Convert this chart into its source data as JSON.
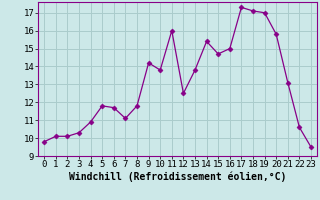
{
  "x": [
    0,
    1,
    2,
    3,
    4,
    5,
    6,
    7,
    8,
    9,
    10,
    11,
    12,
    13,
    14,
    15,
    16,
    17,
    18,
    19,
    20,
    21,
    22,
    23
  ],
  "y": [
    9.8,
    10.1,
    10.1,
    10.3,
    10.9,
    11.8,
    11.7,
    11.1,
    11.8,
    14.2,
    13.8,
    16.0,
    12.5,
    13.8,
    15.4,
    14.7,
    15.0,
    17.3,
    17.1,
    17.0,
    15.8,
    13.1,
    10.6,
    9.5
  ],
  "line_color": "#880088",
  "marker": "D",
  "marker_size": 2.5,
  "background_color": "#cce8e8",
  "grid_color": "#aacccc",
  "xlabel": "Windchill (Refroidissement éolien,°C)",
  "xlabel_fontsize": 7,
  "ylim": [
    9,
    17.6
  ],
  "xlim": [
    -0.5,
    23.5
  ],
  "yticks": [
    9,
    10,
    11,
    12,
    13,
    14,
    15,
    16,
    17
  ],
  "xticks": [
    0,
    1,
    2,
    3,
    4,
    5,
    6,
    7,
    8,
    9,
    10,
    11,
    12,
    13,
    14,
    15,
    16,
    17,
    18,
    19,
    20,
    21,
    22,
    23
  ],
  "tick_fontsize": 6.5,
  "spine_color": "#880088"
}
